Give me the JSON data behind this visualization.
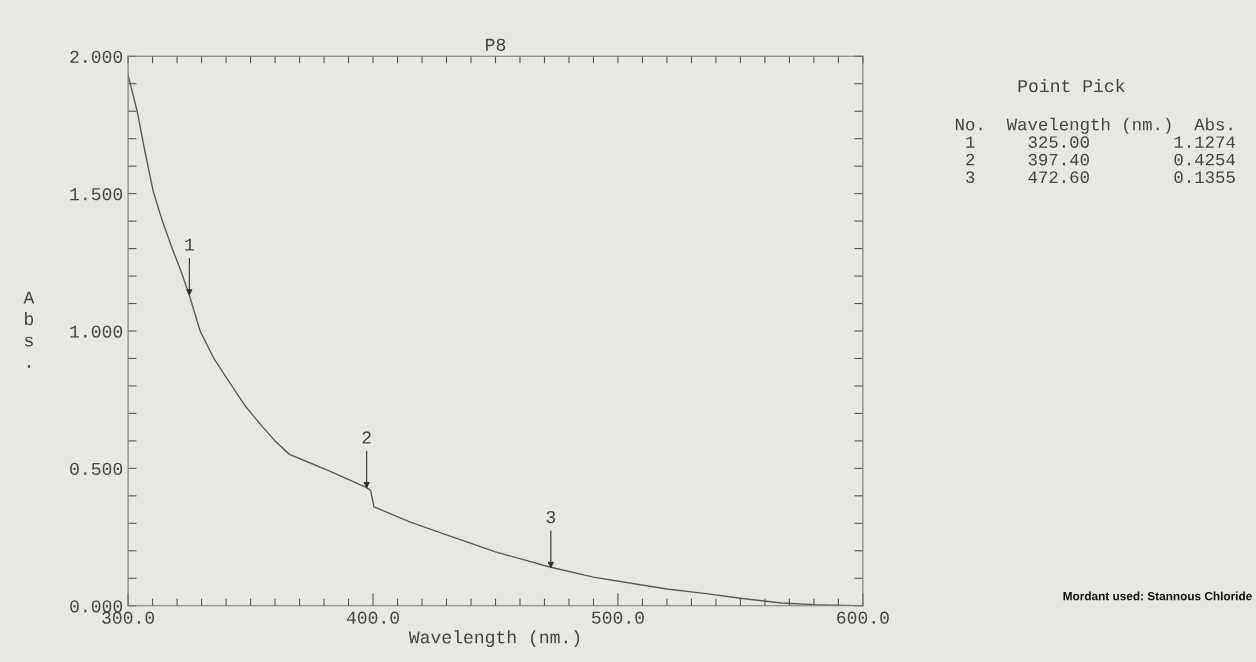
{
  "chart_data": {
    "type": "line",
    "title": "P8",
    "xlabel": "Wavelength (nm.)",
    "ylabel": "Abs.",
    "x": [
      300,
      303.7,
      306.5,
      310.2,
      314,
      318,
      321.5,
      325,
      329.4,
      335,
      341.6,
      348,
      355,
      360,
      366,
      370.2,
      382.3,
      397.4,
      399,
      400.4,
      415,
      430.6,
      450,
      472.6,
      490,
      506,
      520,
      536,
      550,
      566.7,
      580,
      597,
      600
    ],
    "series": [
      {
        "color": "#5a5a5a",
        "values": [
          1.93,
          1.8,
          1.67,
          1.51,
          1.4,
          1.3,
          1.22,
          1.13,
          1.0,
          0.9,
          0.81,
          0.725,
          0.65,
          0.6,
          0.55,
          0.535,
          0.49,
          0.43,
          0.42,
          0.36,
          0.305,
          0.256,
          0.196,
          0.14,
          0.104,
          0.081,
          0.061,
          0.044,
          0.027,
          0.01,
          0.004,
          0.0,
          0.0
        ]
      }
    ],
    "xlim": [
      300,
      600
    ],
    "ylim": [
      0,
      2
    ],
    "xticks": [
      {
        "value": 300,
        "label": "300.0"
      },
      {
        "value": 310,
        "label": null
      },
      {
        "value": 320,
        "label": null
      },
      {
        "value": 330,
        "label": null
      },
      {
        "value": 340,
        "label": null
      },
      {
        "value": 350,
        "label": null
      },
      {
        "value": 360,
        "label": null
      },
      {
        "value": 370,
        "label": null
      },
      {
        "value": 380,
        "label": null
      },
      {
        "value": 390,
        "label": null
      },
      {
        "value": 400,
        "label": "400.0"
      },
      {
        "value": 410,
        "label": null
      },
      {
        "value": 420,
        "label": null
      },
      {
        "value": 430,
        "label": null
      },
      {
        "value": 440,
        "label": null
      },
      {
        "value": 450,
        "label": null
      },
      {
        "value": 460,
        "label": null
      },
      {
        "value": 470,
        "label": null
      },
      {
        "value": 480,
        "label": null
      },
      {
        "value": 490,
        "label": null
      },
      {
        "value": 500,
        "label": "500.0"
      },
      {
        "value": 510,
        "label": null
      },
      {
        "value": 520,
        "label": null
      },
      {
        "value": 530,
        "label": null
      },
      {
        "value": 540,
        "label": null
      },
      {
        "value": 550,
        "label": null
      },
      {
        "value": 560,
        "label": null
      },
      {
        "value": 570,
        "label": null
      },
      {
        "value": 580,
        "label": null
      },
      {
        "value": 590,
        "label": null
      },
      {
        "value": 600,
        "label": "600.0"
      }
    ],
    "yticks": [
      {
        "value": 0,
        "label": "0.000"
      },
      {
        "value": 0.1,
        "label": null
      },
      {
        "value": 0.2,
        "label": null
      },
      {
        "value": 0.3,
        "label": null
      },
      {
        "value": 0.4,
        "label": null
      },
      {
        "value": 0.5,
        "label": "0.500"
      },
      {
        "value": 0.6,
        "label": null
      },
      {
        "value": 0.7,
        "label": null
      },
      {
        "value": 0.8,
        "label": null
      },
      {
        "value": 0.9,
        "label": null
      },
      {
        "value": 1.0,
        "label": "1.000"
      },
      {
        "value": 1.1,
        "label": null
      },
      {
        "value": 1.2,
        "label": null
      },
      {
        "value": 1.3,
        "label": null
      },
      {
        "value": 1.4,
        "label": null
      },
      {
        "value": 1.5,
        "label": "1.500"
      },
      {
        "value": 1.6,
        "label": null
      },
      {
        "value": 1.7,
        "label": null
      },
      {
        "value": 1.8,
        "label": null
      },
      {
        "value": 1.9,
        "label": null
      },
      {
        "value": 2.0,
        "label": "2.000"
      }
    ],
    "grid": false,
    "legend": false,
    "marker": "none",
    "line_style": "solid",
    "annotations": [
      {
        "text": "1",
        "x": 325,
        "y": 1.1274
      },
      {
        "text": "2",
        "x": 397.4,
        "y": 0.4254
      },
      {
        "text": "3",
        "x": 472.6,
        "y": 0.1355
      },
      "Point Pick",
      "No.  Wavelength (nm.)  Abs.",
      " 1     325.00        1.1274",
      " 2     397.40        0.4254",
      " 3     472.60        0.1355",
      "Mordant used: Stannous Chloride"
    ]
  }
}
